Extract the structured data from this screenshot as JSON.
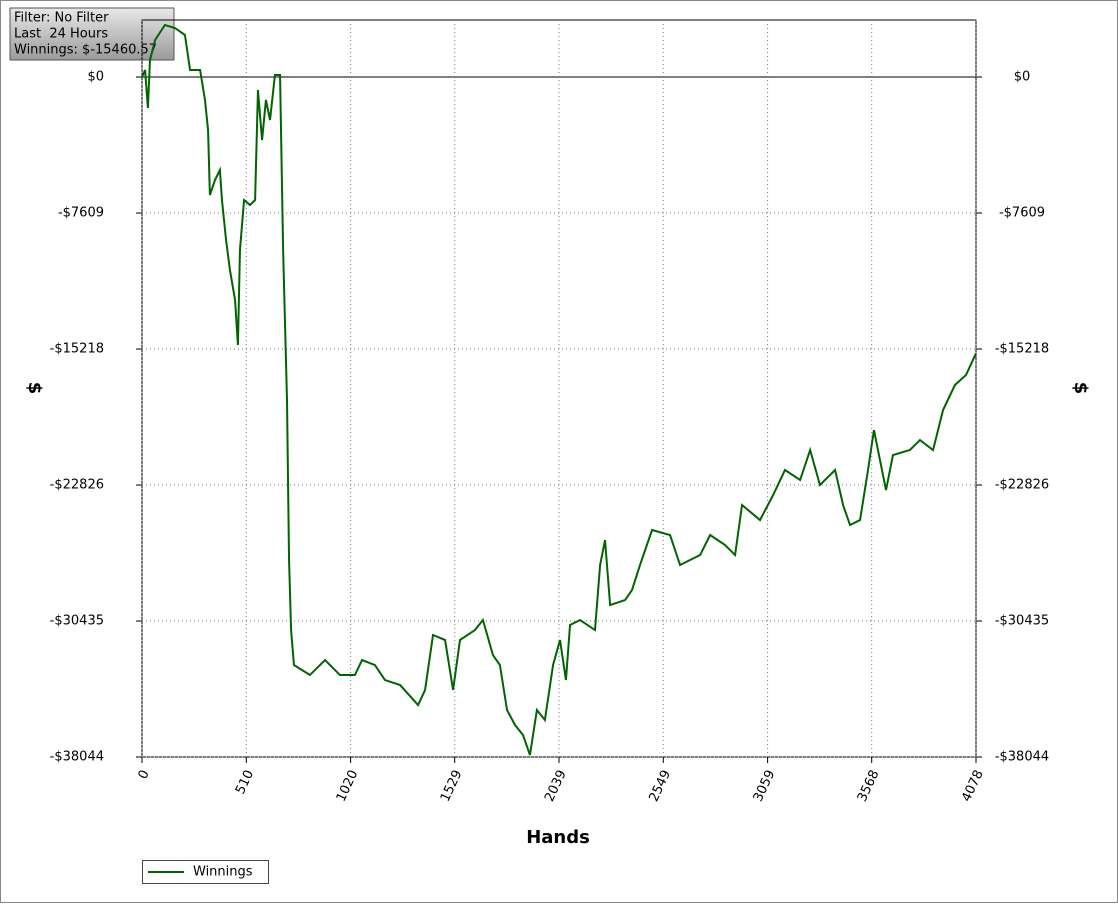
{
  "chart_data": {
    "type": "line",
    "info": [
      "Filter: No Filter",
      "Last  24 Hours",
      "Winnings: $-15460.57"
    ],
    "xlabel": "Hands",
    "ylabel": "$",
    "y2label": "$",
    "x": [
      0,
      15,
      29,
      39,
      64,
      112,
      161,
      210,
      235,
      284,
      308,
      323,
      332,
      357,
      381,
      391,
      411,
      430,
      455,
      469,
      479,
      499,
      528,
      553,
      567,
      587,
      606,
      626,
      650,
      675,
      690,
      709,
      719,
      729,
      743,
      821,
      895,
      968,
      1041,
      1076,
      1139,
      1188,
      1262,
      1350,
      1384,
      1423,
      1482,
      1521,
      1555,
      1628,
      1667,
      1716,
      1750,
      1785,
      1824,
      1863,
      1897,
      1931,
      1970,
      2010,
      2044,
      2073,
      2093,
      2142,
      2215,
      2240,
      2264,
      2289,
      2362,
      2396,
      2435,
      2494,
      2582,
      2631,
      2729,
      2778,
      2851,
      2900,
      2934,
      3022,
      3086,
      3144,
      3218,
      3267,
      3315,
      3389,
      3428,
      3462,
      3511,
      3550,
      3579,
      3638,
      3672,
      3755,
      3804,
      3868,
      3917,
      3975,
      4029,
      4078
    ],
    "series": [
      {
        "name": "Winnings",
        "color": "#006400",
        "values": [
          0,
          392,
          -1734,
          951,
          2070,
          2909,
          2742,
          2350,
          392,
          392,
          -1287,
          -2965,
          -6602,
          -5763,
          -5203,
          -6882,
          -9120,
          -10799,
          -12477,
          -14995,
          -9680,
          -6882,
          -7162,
          -6882,
          -727,
          -3525,
          -1287,
          -2406,
          112,
          112,
          -9680,
          -18072,
          -27024,
          -30940,
          -32898,
          -33458,
          -32618,
          -33458,
          -33458,
          -32618,
          -32898,
          -33738,
          -34018,
          -35136,
          -34297,
          -31219,
          -31499,
          -34297,
          -31499,
          -30940,
          -30380,
          -32338,
          -32898,
          -35416,
          -36255,
          -36814,
          -37933,
          -35416,
          -35975,
          -32898,
          -31499,
          -33738,
          -30660,
          -30380,
          -30940,
          -27303,
          -25905,
          -29542,
          -29262,
          -28703,
          -27303,
          -25345,
          -25625,
          -27303,
          -26744,
          -25625,
          -26184,
          -26744,
          -23947,
          -24786,
          -23387,
          -21988,
          -22547,
          -20869,
          -22827,
          -21988,
          -23947,
          -25065,
          -24786,
          -21988,
          -19750,
          -23107,
          -21149,
          -20869,
          -20310,
          -20869,
          -18631,
          -17233,
          -16673,
          -15461
        ]
      }
    ],
    "xlim": [
      0,
      4078
    ],
    "xticks": [
      0,
      510,
      1020,
      1529,
      2039,
      2549,
      3059,
      3568,
      4078
    ],
    "ylim": [
      -38044,
      3189
    ],
    "yticks": [
      {
        "value": 0,
        "label": "$0"
      },
      {
        "value": -7609,
        "label": "-$7609"
      },
      {
        "value": -15218,
        "label": "-$15218"
      },
      {
        "value": -22826,
        "label": "-$22826"
      },
      {
        "value": -30435,
        "label": "-$30435"
      },
      {
        "value": -38044,
        "label": "-$38044"
      }
    ],
    "y2lim": [
      -38044,
      3189
    ],
    "y2ticks": [
      {
        "value": 0,
        "label": "$0"
      },
      {
        "value": -7609,
        "label": "-$7609"
      },
      {
        "value": -15218,
        "label": "-$15218"
      },
      {
        "value": -22826,
        "label": "-$22826"
      },
      {
        "value": -30435,
        "label": "-$30435"
      },
      {
        "value": -38044,
        "label": "-$38044"
      }
    ],
    "grid": true,
    "legend": "bottom-left"
  }
}
